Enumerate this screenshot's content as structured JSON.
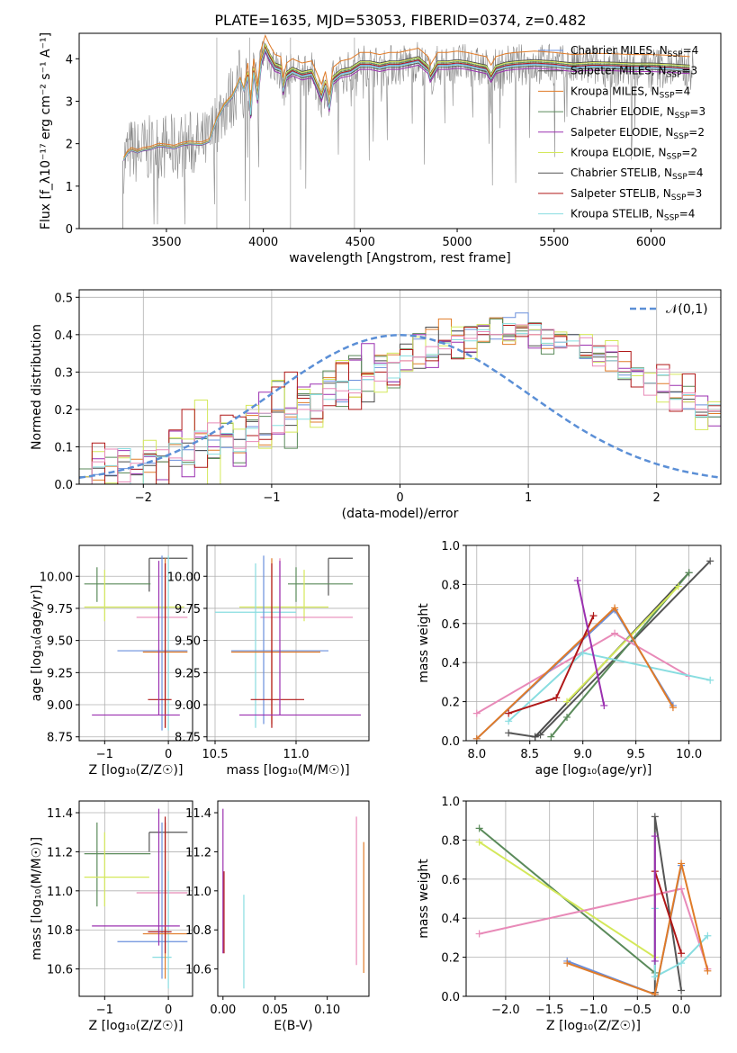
{
  "figure_title": "PLATE=1635, MJD=53053, FIBERID=0374, z=0.482",
  "colors": {
    "Chabrier MILES": "#6a8fdc",
    "Salpeter MILES": "#4b4b4b",
    "Kroupa MILES": "#e07b28",
    "Chabrier ELODIE": "#5a8a5a",
    "Salpeter ELODIE": "#9b30b0",
    "Kroupa ELODIE": "#d4e85a",
    "Chabrier STELIB": "#555555",
    "Salpeter STELIB": "#b01818",
    "Kroupa STELIB": "#88dde0",
    "Pink": "#e88ab8",
    "data": "#888888"
  },
  "chart_data": [
    {
      "type": "line",
      "id": "spectrum",
      "xlabel": "wavelength [Angstrom, rest frame]",
      "ylabel": "Flux [f_λ10⁻¹⁷ erg cm⁻² s⁻¹ A⁻¹]",
      "xlim": [
        3050,
        6360
      ],
      "ylim": [
        0,
        4.6
      ],
      "xticks": [
        "3500",
        "4000",
        "4500",
        "5000",
        "5500",
        "6000"
      ],
      "yticks": [
        "0",
        "1",
        "2",
        "3",
        "4"
      ],
      "legend_position": "right",
      "legend": [
        {
          "label": "Chabrier MILES, N",
          "sub": "SSP",
          "suffix": "=4",
          "color": "#6a8fdc"
        },
        {
          "label": "Salpeter MILES, N",
          "sub": "SSP",
          "suffix": "=3",
          "color": "#4b4b4b"
        },
        {
          "label": "Kroupa MILES, N",
          "sub": "SSP",
          "suffix": "=4",
          "color": "#e07b28"
        },
        {
          "label": "Chabrier ELODIE, N",
          "sub": "SSP",
          "suffix": "=3",
          "color": "#5a8a5a"
        },
        {
          "label": "Salpeter ELODIE, N",
          "sub": "SSP",
          "suffix": "=2",
          "color": "#9b30b0"
        },
        {
          "label": "Kroupa ELODIE, N",
          "sub": "SSP",
          "suffix": "=2",
          "color": "#d4e85a"
        },
        {
          "label": "Chabrier STELIB, N",
          "sub": "SSP",
          "suffix": "=4",
          "color": "#555555"
        },
        {
          "label": "Salpeter STELIB, N",
          "sub": "SSP",
          "suffix": "=3",
          "color": "#b01818"
        },
        {
          "label": "Kroupa STELIB, N",
          "sub": "SSP",
          "suffix": "=4",
          "color": "#88dde0"
        }
      ],
      "model_x": [
        3280,
        3300,
        3320,
        3350,
        3380,
        3420,
        3460,
        3500,
        3540,
        3580,
        3620,
        3680,
        3720,
        3760,
        3800,
        3840,
        3880,
        3900,
        3920,
        3935,
        3950,
        3970,
        3990,
        4010,
        4030,
        4060,
        4090,
        4102,
        4120,
        4150,
        4200,
        4250,
        4300,
        4320,
        4340,
        4360,
        4400,
        4450,
        4500,
        4550,
        4600,
        4650,
        4700,
        4750,
        4800,
        4850,
        4861,
        4900,
        4950,
        5000,
        5050,
        5100,
        5150,
        5175,
        5200,
        5250,
        5300,
        5400,
        5500,
        5600,
        5700,
        5800,
        5900,
        6000,
        6100,
        6200
      ],
      "model_y": [
        1.62,
        1.78,
        1.85,
        1.8,
        1.85,
        1.88,
        1.95,
        1.93,
        1.9,
        1.97,
        2.0,
        1.98,
        2.05,
        2.55,
        2.9,
        3.1,
        3.5,
        3.25,
        3.6,
        2.7,
        3.7,
        3.05,
        3.95,
        4.25,
        4.05,
        3.8,
        3.75,
        3.25,
        3.6,
        3.7,
        3.6,
        3.65,
        3.1,
        3.4,
        2.85,
        3.5,
        3.65,
        3.7,
        3.85,
        3.85,
        3.8,
        3.85,
        3.85,
        3.9,
        3.95,
        3.75,
        3.55,
        3.85,
        3.85,
        3.88,
        3.85,
        3.8,
        3.75,
        3.55,
        3.75,
        3.82,
        3.85,
        3.88,
        3.85,
        3.8,
        3.83,
        3.82,
        3.8,
        3.8,
        3.78,
        3.75
      ],
      "model_offsets": [
        0,
        0.1,
        0.3,
        0.05,
        -0.1,
        0.08,
        -0.05,
        0.02,
        -0.02
      ]
    },
    {
      "type": "bar",
      "id": "residual-histogram",
      "xlabel": "(data-model)/error",
      "ylabel": "Normed distribution",
      "xlim": [
        -2.5,
        2.5
      ],
      "ylim": [
        0,
        0.52
      ],
      "xticks": [
        "−2",
        "−1",
        "0",
        "1",
        "2"
      ],
      "yticks": [
        "0.0",
        "0.1",
        "0.2",
        "0.3",
        "0.4",
        "0.5"
      ],
      "legend": [
        {
          "label": "𝒩(0,1)",
          "color": "#5b8fd6",
          "style": "dashed"
        }
      ],
      "legend_position": "top-right",
      "bin_width": 0.1,
      "bin_start": -2.5,
      "base_values": [
        0.02,
        0.02,
        0.03,
        0.03,
        0.04,
        0.05,
        0.06,
        0.07,
        0.08,
        0.09,
        0.1,
        0.11,
        0.12,
        0.13,
        0.15,
        0.17,
        0.18,
        0.2,
        0.22,
        0.24,
        0.25,
        0.26,
        0.28,
        0.3,
        0.31,
        0.33,
        0.34,
        0.36,
        0.37,
        0.38,
        0.39,
        0.4,
        0.4,
        0.41,
        0.41,
        0.4,
        0.39,
        0.38,
        0.37,
        0.36,
        0.34,
        0.33,
        0.31,
        0.29,
        0.27,
        0.26,
        0.24,
        0.22,
        0.2,
        0.18
      ],
      "series_perturbations": [
        [
          0.0,
          0.01,
          -0.01,
          0.02,
          0.0,
          0.01,
          0.0,
          -0.01,
          0.02,
          0.0,
          0.03,
          -0.02,
          0.0,
          0.04,
          -0.03,
          0.05,
          -0.01,
          0.02,
          -0.04,
          0.06,
          -0.05,
          0.03,
          0.0,
          0.02,
          -0.06,
          0.05,
          0.08,
          -0.03,
          0.02,
          0.05,
          0.04,
          0.0,
          -0.02,
          0.06,
          0.08,
          0.02,
          -0.03,
          -0.02,
          0.05,
          -0.04,
          0.01,
          0.0,
          -0.03,
          0.02,
          0.0,
          -0.02,
          0.01,
          -0.03,
          0.02,
          0.0
        ],
        [
          0.01,
          -0.01,
          0.02,
          0.0,
          0.03,
          -0.01,
          0.04,
          -0.02,
          0.0,
          0.02,
          -0.03,
          0.04,
          0.0,
          -0.04,
          0.03,
          0.0,
          0.05,
          -0.02,
          0.03,
          -0.03,
          0.05,
          -0.06,
          0.04,
          0.03,
          0.1,
          -0.08,
          0.04,
          0.02,
          0.06,
          -0.04,
          0.08,
          -0.03,
          0.04,
          -0.05,
          0.03,
          0.06,
          -0.02,
          0.01,
          -0.04,
          0.03,
          -0.02,
          0.04,
          -0.01,
          0.0,
          0.03,
          -0.04,
          0.02,
          0.0,
          -0.02,
          0.01
        ]
      ],
      "normal_curve": {
        "mu": 0,
        "sigma": 1
      }
    },
    {
      "type": "scatter",
      "id": "age-vs-Z",
      "xlabel": "Z [log₁₀(Z/Z☉)]",
      "ylabel": "age  [log₁₀(age/yr)]",
      "xlim": [
        -1.4,
        0.38
      ],
      "ylim": [
        8.72,
        10.24
      ],
      "xticks": [
        "−1",
        "0"
      ],
      "yticks": [
        "8.75",
        "9.00",
        "9.25",
        "9.50",
        "9.75",
        "10.00"
      ],
      "points": [
        {
          "x": -0.3,
          "y": 10.14,
          "xlo": -0.3,
          "xhi": 0.3,
          "ylo": 10.14,
          "yhi": 10.14,
          "color": "#555555"
        },
        {
          "x": -0.3,
          "y": 10.0,
          "xlo": -0.3,
          "xhi": -0.3,
          "ylo": 9.88,
          "yhi": 10.14,
          "color": "#4b4b4b"
        },
        {
          "x": -1.12,
          "y": 9.94,
          "xlo": -1.32,
          "xhi": -0.28,
          "ylo": 9.8,
          "yhi": 10.07,
          "color": "#5a8a5a"
        },
        {
          "x": -1.0,
          "y": 9.76,
          "xlo": -1.32,
          "xhi": 0.25,
          "ylo": 9.65,
          "yhi": 10.05,
          "color": "#d4e85a"
        },
        {
          "x": -0.05,
          "y": 9.68,
          "xlo": -0.5,
          "xhi": 0.3,
          "ylo": 9.68,
          "yhi": 10.14,
          "color": "#e88ab8"
        },
        {
          "x": 0.0,
          "y": 9.72,
          "xlo": 0.0,
          "xhi": 0.0,
          "ylo": 8.8,
          "yhi": 10.16,
          "color": "#88dde0"
        },
        {
          "x": -0.1,
          "y": 9.42,
          "xlo": -0.8,
          "xhi": 0.3,
          "ylo": 8.8,
          "yhi": 10.16,
          "color": "#6a8fdc"
        },
        {
          "x": -0.05,
          "y": 9.41,
          "xlo": -0.4,
          "xhi": 0.3,
          "ylo": 8.82,
          "yhi": 10.14,
          "color": "#e07b28"
        },
        {
          "x": -0.05,
          "y": 9.04,
          "xlo": -0.32,
          "xhi": 0.05,
          "ylo": 8.82,
          "yhi": 10.1,
          "color": "#b01818"
        },
        {
          "x": -0.15,
          "y": 8.92,
          "xlo": -1.2,
          "xhi": 0.18,
          "ylo": 8.92,
          "yhi": 10.12,
          "color": "#9b30b0"
        }
      ]
    },
    {
      "type": "scatter",
      "id": "age-vs-mass",
      "xlabel": "mass [log₁₀(M/M☉)]",
      "ylabel": "",
      "xlim": [
        10.45,
        11.45
      ],
      "ylim": [
        8.72,
        10.24
      ],
      "xticks": [
        "10.5",
        "11.0"
      ],
      "yticks": [
        "8.75",
        "9.00",
        "9.25",
        "9.50",
        "9.75",
        "10.00"
      ],
      "points": [
        {
          "x": 11.2,
          "y": 10.14,
          "xlo": 11.2,
          "xhi": 11.35,
          "ylo": 9.85,
          "yhi": 10.14,
          "color": "#555555"
        },
        {
          "x": 11.0,
          "y": 9.94,
          "xlo": 10.95,
          "xhi": 11.35,
          "ylo": 9.8,
          "yhi": 10.07,
          "color": "#5a8a5a"
        },
        {
          "x": 11.05,
          "y": 9.76,
          "xlo": 10.65,
          "xhi": 11.2,
          "ylo": 9.65,
          "yhi": 10.05,
          "color": "#d4e85a"
        },
        {
          "x": 10.9,
          "y": 9.68,
          "xlo": 10.78,
          "xhi": 11.35,
          "ylo": 9.68,
          "yhi": 10.14,
          "color": "#e88ab8"
        },
        {
          "x": 10.75,
          "y": 9.72,
          "xlo": 10.5,
          "xhi": 11.0,
          "ylo": 8.82,
          "yhi": 10.1,
          "color": "#88dde0"
        },
        {
          "x": 10.8,
          "y": 9.42,
          "xlo": 10.6,
          "xhi": 11.2,
          "ylo": 8.85,
          "yhi": 10.16,
          "color": "#6a8fdc"
        },
        {
          "x": 10.85,
          "y": 9.41,
          "xlo": 10.6,
          "xhi": 11.15,
          "ylo": 8.85,
          "yhi": 10.14,
          "color": "#e07b28"
        },
        {
          "x": 10.85,
          "y": 9.04,
          "xlo": 10.72,
          "xhi": 11.05,
          "ylo": 8.82,
          "yhi": 10.1,
          "color": "#b01818"
        },
        {
          "x": 10.9,
          "y": 8.92,
          "xlo": 10.65,
          "xhi": 11.4,
          "ylo": 8.92,
          "yhi": 10.12,
          "color": "#9b30b0"
        }
      ]
    },
    {
      "type": "line",
      "id": "mass-weight-vs-age",
      "xlabel": "age  [log₁₀(age/yr)]",
      "ylabel": "mass weight",
      "xlim": [
        7.9,
        10.3
      ],
      "ylim": [
        0,
        1.0
      ],
      "xticks": [
        "8.0",
        "8.5",
        "9.0",
        "9.5",
        "10.0"
      ],
      "yticks": [
        "0.0",
        "0.2",
        "0.4",
        "0.6",
        "0.8",
        "1.0"
      ],
      "series": [
        {
          "color": "#555555",
          "x": [
            8.3,
            8.55,
            8.6,
            10.2
          ],
          "y": [
            0.04,
            0.02,
            0.03,
            0.92
          ]
        },
        {
          "color": "#4b4b4b",
          "x": [
            8.55,
            10.0
          ],
          "y": [
            0.02,
            0.86
          ]
        },
        {
          "color": "#5a8a5a",
          "x": [
            8.7,
            8.85,
            10.0
          ],
          "y": [
            0.02,
            0.12,
            0.86
          ]
        },
        {
          "color": "#d4e85a",
          "x": [
            8.85,
            9.9
          ],
          "y": [
            0.2,
            0.79
          ]
        },
        {
          "color": "#e88ab8",
          "x": [
            8.0,
            9.3,
            10.0
          ],
          "y": [
            0.14,
            0.55,
            0.33
          ]
        },
        {
          "color": "#88dde0",
          "x": [
            8.3,
            9.0,
            10.2
          ],
          "y": [
            0.1,
            0.45,
            0.31
          ]
        },
        {
          "color": "#6a8fdc",
          "x": [
            8.0,
            9.3,
            9.85
          ],
          "y": [
            0.01,
            0.67,
            0.18
          ]
        },
        {
          "color": "#e07b28",
          "x": [
            8.0,
            9.3,
            9.85
          ],
          "y": [
            0.01,
            0.68,
            0.17
          ]
        },
        {
          "color": "#b01818",
          "x": [
            8.3,
            8.75,
            9.1
          ],
          "y": [
            0.14,
            0.22,
            0.64
          ]
        },
        {
          "color": "#9b30b0",
          "x": [
            8.95,
            9.2
          ],
          "y": [
            0.82,
            0.18
          ]
        }
      ]
    },
    {
      "type": "scatter",
      "id": "mass-vs-Z",
      "xlabel": "Z [log₁₀(Z/Z☉)]",
      "ylabel": "mass [log₁₀(M/M☉)]",
      "xlim": [
        -1.4,
        0.38
      ],
      "ylim": [
        10.46,
        11.46
      ],
      "xticks": [
        "−1",
        "0"
      ],
      "yticks": [
        "10.6",
        "10.8",
        "11.0",
        "11.2",
        "11.4"
      ],
      "points": [
        {
          "x": -0.3,
          "y": 11.3,
          "xlo": -0.3,
          "xhi": 0.3,
          "ylo": 11.2,
          "yhi": 11.3,
          "color": "#555555"
        },
        {
          "x": -1.12,
          "y": 11.19,
          "xlo": -1.32,
          "xhi": -0.28,
          "ylo": 10.92,
          "yhi": 11.35,
          "color": "#5a8a5a"
        },
        {
          "x": -1.0,
          "y": 11.07,
          "xlo": -1.32,
          "xhi": -0.3,
          "ylo": 10.92,
          "yhi": 11.3,
          "color": "#d4e85a"
        },
        {
          "x": -0.05,
          "y": 10.99,
          "xlo": -0.5,
          "xhi": 0.3,
          "ylo": 10.75,
          "yhi": 11.35,
          "color": "#e88ab8"
        },
        {
          "x": 0.0,
          "y": 10.66,
          "xlo": -0.25,
          "xhi": 0.05,
          "ylo": 10.5,
          "yhi": 11.1,
          "color": "#88dde0"
        },
        {
          "x": -0.1,
          "y": 10.74,
          "xlo": -0.8,
          "xhi": 0.3,
          "ylo": 10.55,
          "yhi": 11.35,
          "color": "#6a8fdc"
        },
        {
          "x": -0.05,
          "y": 10.78,
          "xlo": -0.4,
          "xhi": 0.3,
          "ylo": 10.55,
          "yhi": 11.35,
          "color": "#e07b28"
        },
        {
          "x": -0.05,
          "y": 10.79,
          "xlo": -0.32,
          "xhi": 0.05,
          "ylo": 10.68,
          "yhi": 11.38,
          "color": "#b01818"
        },
        {
          "x": -0.15,
          "y": 10.82,
          "xlo": -1.2,
          "xhi": 0.18,
          "ylo": 10.72,
          "yhi": 11.42,
          "color": "#9b30b0"
        }
      ]
    },
    {
      "type": "scatter",
      "id": "mass-vs-ebv",
      "xlabel": "E(B-V)",
      "ylabel": "",
      "xlim": [
        -0.005,
        0.14
      ],
      "ylim": [
        10.46,
        11.46
      ],
      "xticks": [
        "0.00",
        "0.05",
        "0.10"
      ],
      "yticks": [
        "10.6",
        "10.8",
        "11.0",
        "11.2",
        "11.4"
      ],
      "points": [
        {
          "x": 0.0,
          "y": 11.05,
          "ylo": 10.68,
          "yhi": 11.42,
          "color": "#9b30b0"
        },
        {
          "x": 0.001,
          "y": 10.9,
          "ylo": 10.68,
          "yhi": 11.1,
          "color": "#b01818"
        },
        {
          "x": 0.02,
          "y": 10.75,
          "ylo": 10.5,
          "yhi": 10.98,
          "color": "#88dde0"
        },
        {
          "x": 0.128,
          "y": 11.0,
          "ylo": 10.62,
          "yhi": 11.38,
          "color": "#e88ab8"
        },
        {
          "x": 0.135,
          "y": 10.95,
          "ylo": 10.58,
          "yhi": 11.25,
          "color": "#e07b28"
        }
      ]
    },
    {
      "type": "line",
      "id": "mass-weight-vs-Z",
      "xlabel": "Z [log₁₀(Z/Z☉)]",
      "ylabel": "mass weight",
      "xlim": [
        -2.45,
        0.45
      ],
      "ylim": [
        0,
        1.0
      ],
      "xticks": [
        "−2.0",
        "−1.5",
        "−1.0",
        "−0.5",
        "0.0"
      ],
      "yticks": [
        "0.0",
        "0.2",
        "0.4",
        "0.6",
        "0.8",
        "1.0"
      ],
      "series": [
        {
          "color": "#555555",
          "x": [
            -0.3,
            -0.3,
            0.0
          ],
          "y": [
            0.02,
            0.92,
            0.03
          ]
        },
        {
          "color": "#5a8a5a",
          "x": [
            -2.3,
            -0.3
          ],
          "y": [
            0.86,
            0.12
          ]
        },
        {
          "color": "#d4e85a",
          "x": [
            -2.3,
            -0.3
          ],
          "y": [
            0.79,
            0.2
          ]
        },
        {
          "color": "#e88ab8",
          "x": [
            -2.3,
            0.0,
            0.3
          ],
          "y": [
            0.32,
            0.55,
            0.14
          ]
        },
        {
          "color": "#88dde0",
          "x": [
            -0.3,
            -0.3,
            0.0,
            0.3
          ],
          "y": [
            0.45,
            0.1,
            0.17,
            0.31
          ]
        },
        {
          "color": "#6a8fdc",
          "x": [
            -1.3,
            -0.3,
            0.0
          ],
          "y": [
            0.18,
            0.01,
            0.67
          ]
        },
        {
          "color": "#e07b28",
          "x": [
            -1.3,
            -0.3,
            0.0,
            0.3
          ],
          "y": [
            0.17,
            0.01,
            0.68,
            0.13
          ]
        },
        {
          "color": "#b01818",
          "x": [
            -0.3,
            0.0
          ],
          "y": [
            0.64,
            0.22
          ]
        },
        {
          "color": "#9b30b0",
          "x": [
            -0.3,
            -0.3
          ],
          "y": [
            0.82,
            0.18
          ]
        }
      ]
    }
  ]
}
